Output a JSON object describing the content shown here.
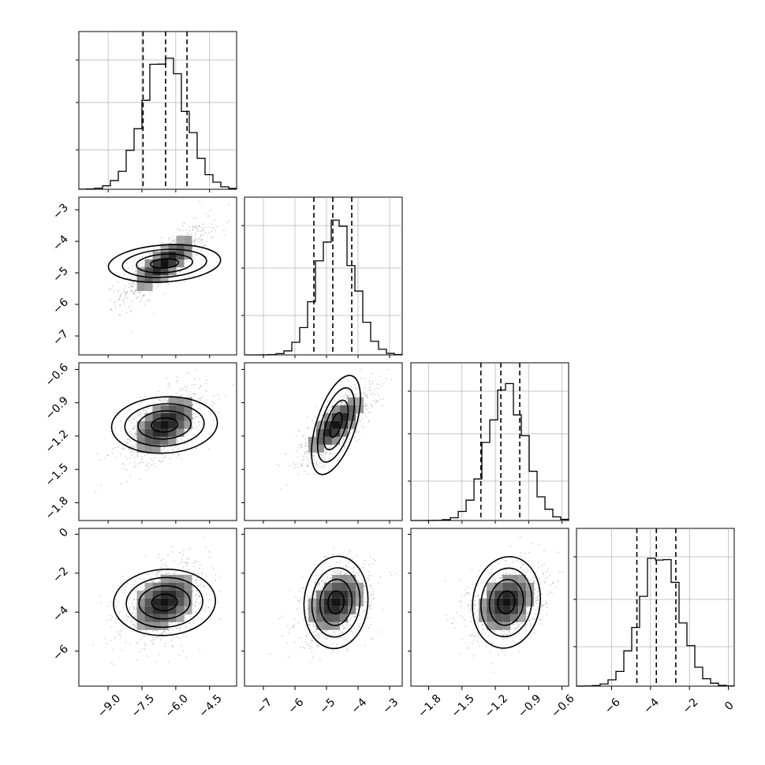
{
  "chart_data": {
    "type": "corner",
    "parameters": 4,
    "colors": {
      "line": "#000000",
      "grid": "#b0b0b0",
      "scatter": "#9a9a9a"
    },
    "grid": true,
    "axes": [
      {
        "range": [
          -10.3,
          -3.3
        ],
        "ticks": [
          -9.0,
          -7.5,
          -6.0,
          -4.5
        ],
        "tick_labels": [
          "−9.0",
          "−7.5",
          "−6.0",
          "−4.5"
        ],
        "quantiles": [
          -7.45,
          -6.45,
          -5.5
        ],
        "peak": -6.5,
        "sd": 0.95
      },
      {
        "range": [
          -7.6,
          -2.6
        ],
        "ticks": [
          -7,
          -6,
          -5,
          -4,
          -3
        ],
        "tick_labels": [
          "−7",
          "−6",
          "−5",
          "−4",
          "−3"
        ],
        "quantiles": [
          -5.4,
          -4.8,
          -4.2
        ],
        "peak": -4.7,
        "sd": 0.58
      },
      {
        "range": [
          -1.96,
          -0.54
        ],
        "ticks": [
          -1.8,
          -1.5,
          -1.2,
          -0.9,
          -0.6
        ],
        "tick_labels": [
          "−1.8",
          "−1.5",
          "−1.2",
          "−0.9",
          "−0.6"
        ],
        "quantiles": [
          -1.33,
          -1.15,
          -0.98
        ],
        "peak": -1.1,
        "sd": 0.17
      },
      {
        "range": [
          -7.8,
          0.3
        ],
        "ticks": [
          -6,
          -4,
          -2,
          0
        ],
        "tick_labels": [
          "−6",
          "−4",
          "−2",
          "0"
        ],
        "quantiles": [
          -4.7,
          -3.7,
          -2.7
        ],
        "peak": -3.5,
        "sd": 1.0
      }
    ],
    "correlations": {
      "1-0": 0.8,
      "2-0": 0.55,
      "2-1": 0.75,
      "3-0": 0.4,
      "3-1": 0.35,
      "3-2": 0.3
    }
  }
}
